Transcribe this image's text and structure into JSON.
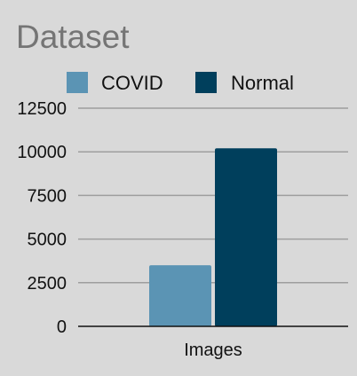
{
  "chart_data": {
    "type": "bar",
    "title": "Dataset",
    "categories": [
      "Images"
    ],
    "series": [
      {
        "name": "COVID",
        "values": [
          3500
        ],
        "color": "#5b94b4"
      },
      {
        "name": "Normal",
        "values": [
          10200
        ],
        "color": "#003f5c"
      }
    ],
    "ylim": [
      0,
      12500
    ],
    "yticks": [
      0,
      2500,
      5000,
      7500,
      10000,
      12500
    ],
    "grid": true,
    "legend": "top"
  }
}
